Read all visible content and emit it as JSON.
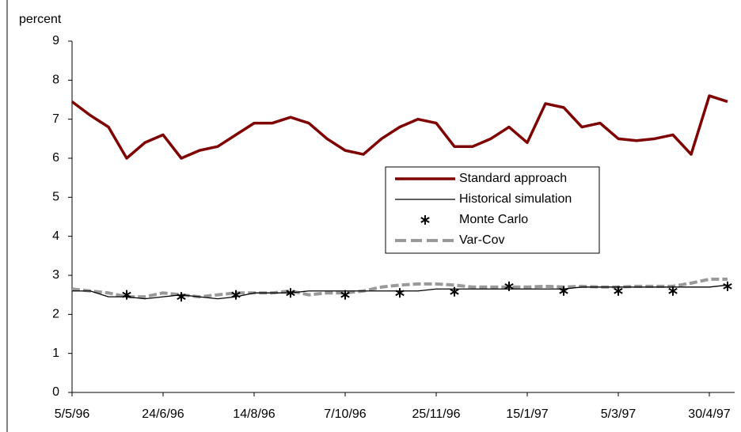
{
  "chart_data": {
    "type": "line",
    "y_label": "percent",
    "categories": [
      "5/5/96",
      null,
      null,
      null,
      null,
      "24/6/96",
      null,
      null,
      null,
      null,
      "14/8/96",
      null,
      null,
      null,
      null,
      "7/10/96",
      null,
      null,
      null,
      null,
      "25/11/96",
      null,
      null,
      null,
      null,
      "15/1/97",
      null,
      null,
      null,
      null,
      "5/3/97",
      null,
      null,
      null,
      null,
      "30/4/97",
      null
    ],
    "ylim": [
      0,
      9
    ],
    "yticks": [
      0,
      1,
      2,
      3,
      4,
      5,
      6,
      7,
      8,
      9
    ],
    "grid": false,
    "legend": "center-right",
    "series": [
      {
        "name": "Standard approach",
        "color": "#7f0000",
        "style": "solid",
        "width": 3.5,
        "values": [
          7.45,
          7.1,
          6.8,
          6.0,
          6.4,
          6.6,
          6.0,
          6.2,
          6.3,
          6.6,
          6.9,
          6.9,
          7.05,
          6.9,
          6.5,
          6.2,
          6.1,
          6.5,
          6.8,
          7.0,
          6.9,
          6.3,
          6.3,
          6.5,
          6.8,
          6.4,
          7.4,
          7.3,
          6.8,
          6.9,
          6.5,
          6.45,
          6.5,
          6.6,
          6.1,
          7.6,
          7.45
        ]
      },
      {
        "name": "Historical simulation",
        "color": "#000000",
        "style": "solid",
        "width": 1.3,
        "values": [
          2.6,
          2.6,
          2.45,
          2.45,
          2.4,
          2.45,
          2.5,
          2.45,
          2.4,
          2.45,
          2.55,
          2.55,
          2.55,
          2.6,
          2.6,
          2.6,
          2.6,
          2.6,
          2.6,
          2.6,
          2.65,
          2.65,
          2.65,
          2.65,
          2.65,
          2.65,
          2.65,
          2.65,
          2.7,
          2.7,
          2.7,
          2.7,
          2.7,
          2.7,
          2.7,
          2.7,
          2.75
        ]
      },
      {
        "name": "Monte Carlo",
        "color": "#000000",
        "style": "asterisk",
        "width": 2,
        "values": [
          null,
          null,
          null,
          2.5,
          null,
          null,
          2.45,
          null,
          null,
          2.5,
          null,
          null,
          2.55,
          null,
          null,
          2.5,
          null,
          null,
          2.55,
          null,
          null,
          2.58,
          null,
          null,
          2.72,
          null,
          null,
          2.6,
          null,
          null,
          2.6,
          null,
          null,
          2.6,
          null,
          null,
          2.72
        ]
      },
      {
        "name": "Var-Cov",
        "color": "#999999",
        "style": "dashed",
        "width": 4,
        "values": [
          2.65,
          2.6,
          2.55,
          2.45,
          2.45,
          2.55,
          2.5,
          2.45,
          2.5,
          2.55,
          2.55,
          2.55,
          2.6,
          2.5,
          2.55,
          2.55,
          2.6,
          2.7,
          2.75,
          2.78,
          2.78,
          2.75,
          2.7,
          2.7,
          2.7,
          2.7,
          2.72,
          2.7,
          2.72,
          2.7,
          2.7,
          2.72,
          2.72,
          2.72,
          2.8,
          2.9,
          2.9
        ]
      }
    ]
  }
}
